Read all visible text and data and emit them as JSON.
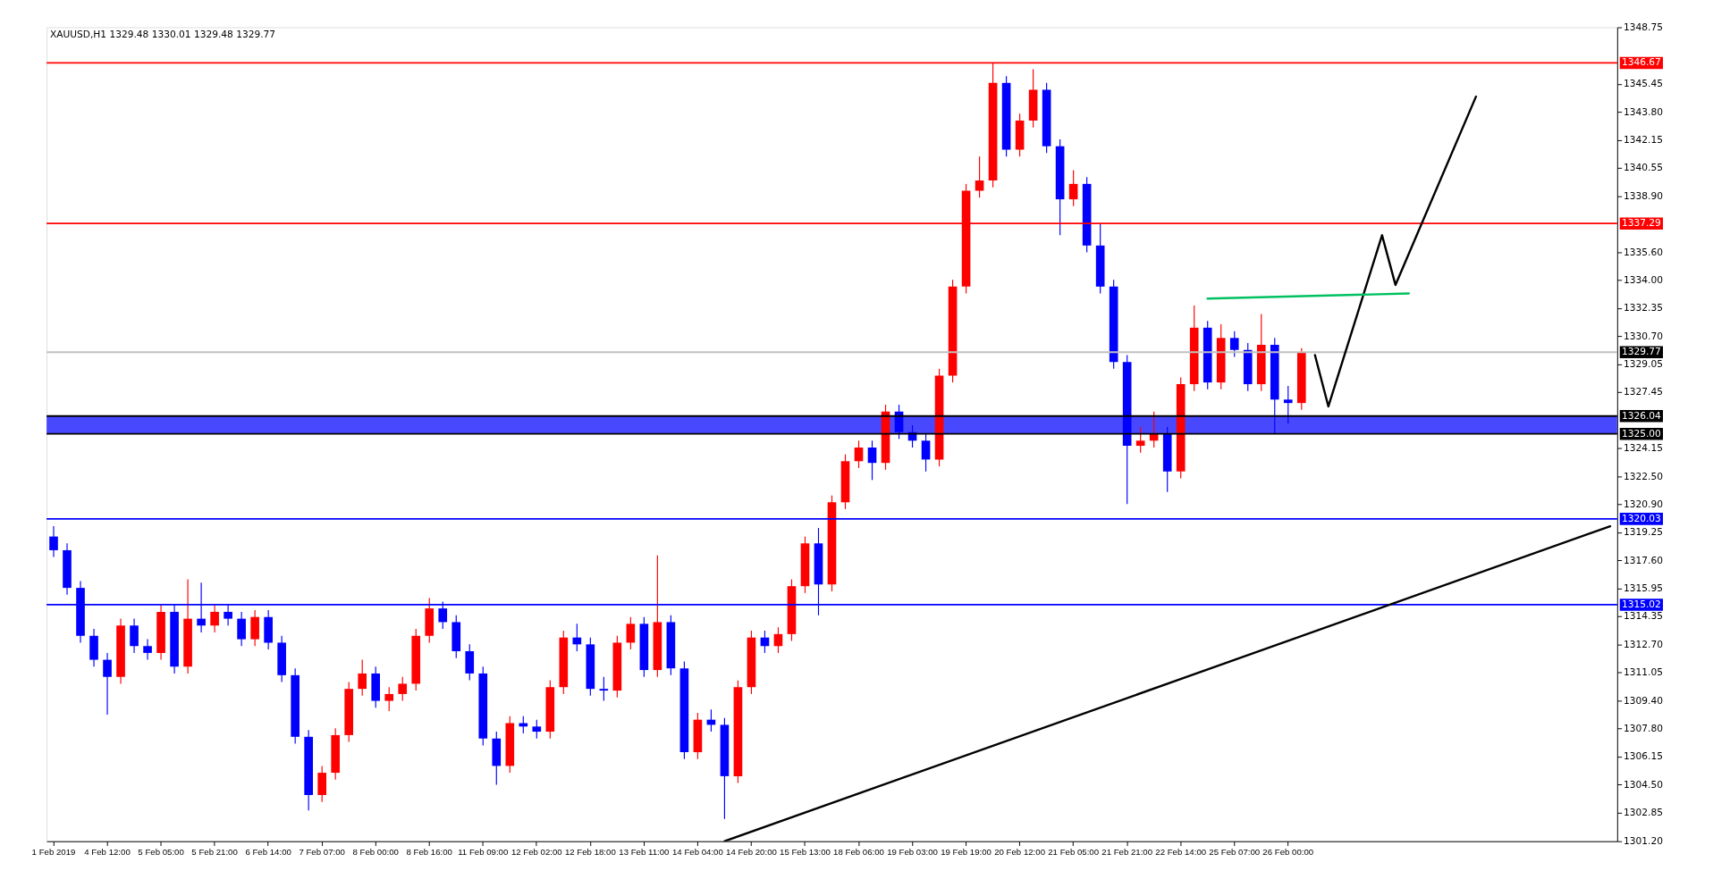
{
  "chart_data": {
    "type": "candlestick",
    "title": "XAUUSD,H1  1329.48 1330.01 1329.48 1329.77",
    "categories": [
      "1 Feb 2019",
      null,
      null,
      null,
      "4 Feb 12:00",
      null,
      null,
      null,
      "5 Feb 05:00",
      null,
      null,
      null,
      "5 Feb 21:00",
      null,
      null,
      null,
      "6 Feb 14:00",
      null,
      null,
      null,
      "7 Feb 07:00",
      null,
      null,
      null,
      "8 Feb 00:00",
      null,
      null,
      null,
      "8 Feb 16:00",
      null,
      null,
      null,
      "11 Feb 09:00",
      null,
      null,
      null,
      "12 Feb 02:00",
      null,
      null,
      null,
      "12 Feb 18:00",
      null,
      null,
      null,
      "13 Feb 11:00",
      null,
      null,
      null,
      "14 Feb 04:00",
      null,
      null,
      null,
      "14 Feb 20:00",
      null,
      null,
      null,
      "15 Feb 13:00",
      null,
      null,
      null,
      "18 Feb 06:00",
      null,
      null,
      null,
      "19 Feb 03:00",
      null,
      null,
      null,
      "19 Feb 19:00",
      null,
      null,
      null,
      "20 Feb 12:00",
      null,
      null,
      null,
      "21 Feb 05:00",
      null,
      null,
      null,
      "21 Feb 21:00",
      null,
      null,
      null,
      "22 Feb 14:00",
      null,
      null,
      null,
      "25 Feb 07:00",
      null,
      null,
      null,
      "26 Feb 00:00",
      null,
      null,
      null,
      null,
      null,
      null,
      null,
      null,
      null,
      null,
      null,
      null,
      null,
      null,
      null,
      null,
      null,
      null,
      null,
      null,
      null,
      null,
      null,
      null
    ],
    "ohlc": [
      [
        1319.0,
        1319.6,
        1317.8,
        1318.2
      ],
      [
        1318.2,
        1318.6,
        1315.6,
        1316.0
      ],
      [
        1316.0,
        1316.4,
        1312.8,
        1313.2
      ],
      [
        1313.2,
        1313.6,
        1311.4,
        1311.8
      ],
      [
        1311.8,
        1312.2,
        1308.6,
        1310.8
      ],
      [
        1310.8,
        1314.2,
        1310.4,
        1313.8
      ],
      [
        1313.8,
        1314.2,
        1312.2,
        1312.6
      ],
      [
        1312.6,
        1313.0,
        1311.8,
        1312.2
      ],
      [
        1312.2,
        1315.0,
        1311.8,
        1314.6
      ],
      [
        1314.6,
        1315.0,
        1311.0,
        1311.4
      ],
      [
        1311.4,
        1316.5,
        1311.0,
        1314.2
      ],
      [
        1314.2,
        1316.3,
        1313.4,
        1313.8
      ],
      [
        1313.8,
        1315.0,
        1313.4,
        1314.6
      ],
      [
        1314.6,
        1315.0,
        1313.8,
        1314.2
      ],
      [
        1314.2,
        1314.6,
        1312.6,
        1313.0
      ],
      [
        1313.0,
        1314.7,
        1312.6,
        1314.3
      ],
      [
        1314.3,
        1314.7,
        1312.4,
        1312.8
      ],
      [
        1312.8,
        1313.2,
        1310.5,
        1310.9
      ],
      [
        1310.9,
        1311.3,
        1306.9,
        1307.3
      ],
      [
        1307.3,
        1307.7,
        1303.0,
        1303.9
      ],
      [
        1303.9,
        1305.6,
        1303.5,
        1305.2
      ],
      [
        1305.2,
        1307.8,
        1304.8,
        1307.4
      ],
      [
        1307.4,
        1310.5,
        1307.0,
        1310.1
      ],
      [
        1310.1,
        1311.8,
        1309.7,
        1311.0
      ],
      [
        1311.0,
        1311.4,
        1309.0,
        1309.4
      ],
      [
        1309.4,
        1310.2,
        1308.8,
        1309.8
      ],
      [
        1309.8,
        1310.8,
        1309.4,
        1310.4
      ],
      [
        1310.4,
        1313.6,
        1310.0,
        1313.2
      ],
      [
        1313.2,
        1315.4,
        1312.8,
        1314.8
      ],
      [
        1314.8,
        1315.2,
        1313.6,
        1314.0
      ],
      [
        1314.0,
        1314.4,
        1311.9,
        1312.3
      ],
      [
        1312.3,
        1312.7,
        1310.6,
        1311.0
      ],
      [
        1311.0,
        1311.4,
        1306.8,
        1307.2
      ],
      [
        1307.2,
        1307.6,
        1304.5,
        1305.6
      ],
      [
        1305.6,
        1308.5,
        1305.2,
        1308.1
      ],
      [
        1308.1,
        1308.5,
        1307.5,
        1307.9
      ],
      [
        1307.9,
        1308.3,
        1307.2,
        1307.6
      ],
      [
        1307.6,
        1310.6,
        1307.2,
        1310.2
      ],
      [
        1310.2,
        1313.5,
        1309.8,
        1313.1
      ],
      [
        1313.1,
        1313.9,
        1312.3,
        1312.7
      ],
      [
        1312.7,
        1313.1,
        1309.7,
        1310.1
      ],
      [
        1310.1,
        1310.8,
        1309.4,
        1310.0
      ],
      [
        1310.0,
        1313.2,
        1309.6,
        1312.8
      ],
      [
        1312.8,
        1314.3,
        1312.4,
        1313.9
      ],
      [
        1313.9,
        1314.3,
        1310.8,
        1311.2
      ],
      [
        1311.2,
        1317.9,
        1310.8,
        1314.0
      ],
      [
        1314.0,
        1314.4,
        1310.9,
        1311.3
      ],
      [
        1311.3,
        1311.7,
        1306.0,
        1306.4
      ],
      [
        1306.4,
        1308.7,
        1306.0,
        1308.3
      ],
      [
        1308.3,
        1308.9,
        1307.6,
        1308.0
      ],
      [
        1308.0,
        1308.4,
        1302.5,
        1305.0
      ],
      [
        1305.0,
        1310.6,
        1304.6,
        1310.2
      ],
      [
        1310.2,
        1313.5,
        1309.8,
        1313.1
      ],
      [
        1313.1,
        1313.5,
        1312.2,
        1312.6
      ],
      [
        1312.6,
        1313.7,
        1312.2,
        1313.3
      ],
      [
        1313.3,
        1316.5,
        1312.9,
        1316.1
      ],
      [
        1316.1,
        1319.0,
        1315.7,
        1318.6
      ],
      [
        1318.6,
        1319.5,
        1314.4,
        1316.2
      ],
      [
        1316.2,
        1321.4,
        1315.8,
        1321.0
      ],
      [
        1321.0,
        1323.8,
        1320.6,
        1323.4
      ],
      [
        1323.4,
        1324.6,
        1323.0,
        1324.2
      ],
      [
        1324.2,
        1324.6,
        1322.3,
        1323.3
      ],
      [
        1323.3,
        1326.7,
        1322.9,
        1326.3
      ],
      [
        1326.3,
        1326.7,
        1324.7,
        1325.1
      ],
      [
        1325.1,
        1325.5,
        1324.2,
        1324.6
      ],
      [
        1324.6,
        1325.0,
        1322.8,
        1323.5
      ],
      [
        1323.5,
        1328.8,
        1323.1,
        1328.4
      ],
      [
        1328.4,
        1334.0,
        1328.0,
        1333.6
      ],
      [
        1333.6,
        1339.6,
        1333.2,
        1339.2
      ],
      [
        1339.2,
        1341.2,
        1338.8,
        1339.8
      ],
      [
        1339.8,
        1346.67,
        1339.4,
        1345.5
      ],
      [
        1345.5,
        1345.9,
        1341.2,
        1341.6
      ],
      [
        1341.6,
        1343.7,
        1341.2,
        1343.3
      ],
      [
        1343.3,
        1346.3,
        1342.9,
        1345.1
      ],
      [
        1345.1,
        1345.5,
        1341.4,
        1341.8
      ],
      [
        1341.8,
        1342.2,
        1336.6,
        1338.7
      ],
      [
        1338.7,
        1340.4,
        1338.3,
        1339.6
      ],
      [
        1339.6,
        1340.0,
        1335.6,
        1336.0
      ],
      [
        1336.0,
        1337.3,
        1333.2,
        1333.6
      ],
      [
        1333.6,
        1334.0,
        1328.8,
        1329.2
      ],
      [
        1329.2,
        1329.6,
        1320.9,
        1324.3
      ],
      [
        1324.3,
        1325.4,
        1323.9,
        1324.6
      ],
      [
        1324.6,
        1326.3,
        1324.2,
        1325.0
      ],
      [
        1325.0,
        1325.4,
        1321.6,
        1322.8
      ],
      [
        1322.8,
        1328.3,
        1322.4,
        1327.9
      ],
      [
        1327.9,
        1332.5,
        1327.5,
        1331.2
      ],
      [
        1331.2,
        1331.6,
        1327.6,
        1328.0
      ],
      [
        1328.0,
        1331.4,
        1327.6,
        1330.6
      ],
      [
        1330.6,
        1331.0,
        1329.5,
        1329.9
      ],
      [
        1329.9,
        1330.3,
        1327.5,
        1327.9
      ],
      [
        1327.9,
        1332.0,
        1327.5,
        1330.2
      ],
      [
        1330.2,
        1330.6,
        1325.0,
        1327.0
      ],
      [
        1327.0,
        1327.8,
        1325.6,
        1326.8
      ],
      [
        1326.8,
        1330.01,
        1326.4,
        1329.77
      ],
      null,
      null,
      null,
      null,
      null,
      null,
      null,
      null,
      null,
      null,
      null,
      null,
      null,
      null,
      null,
      null,
      null,
      null,
      null,
      null,
      null,
      null,
      null
    ],
    "colors": [
      "#0000ff",
      "#0000ff",
      "#0000ff",
      "#0000ff",
      "#0000ff",
      "#ff0000",
      "#0000ff",
      "#0000ff",
      "#ff0000",
      "#0000ff",
      "#ff0000",
      "#0000ff",
      "#ff0000",
      "#0000ff",
      "#0000ff",
      "#ff0000",
      "#0000ff",
      "#0000ff",
      "#0000ff",
      "#0000ff",
      "#ff0000",
      "#ff0000",
      "#ff0000",
      "#ff0000",
      "#0000ff",
      "#ff0000",
      "#ff0000",
      "#ff0000",
      "#ff0000",
      "#0000ff",
      "#0000ff",
      "#0000ff",
      "#0000ff",
      "#0000ff",
      "#ff0000",
      "#0000ff",
      "#0000ff",
      "#ff0000",
      "#ff0000",
      "#0000ff",
      "#0000ff",
      "#0000ff",
      "#ff0000",
      "#ff0000",
      "#0000ff",
      "#ff0000",
      "#0000ff",
      "#0000ff",
      "#ff0000",
      "#0000ff",
      "#0000ff",
      "#ff0000",
      "#ff0000",
      "#0000ff",
      "#ff0000",
      "#ff0000",
      "#ff0000",
      "#0000ff",
      "#ff0000",
      "#ff0000",
      "#ff0000",
      "#0000ff",
      "#ff0000",
      "#0000ff",
      "#0000ff",
      "#0000ff",
      "#ff0000",
      "#ff0000",
      "#ff0000",
      "#ff0000",
      "#ff0000",
      "#0000ff",
      "#ff0000",
      "#ff0000",
      "#0000ff",
      "#0000ff",
      "#ff0000",
      "#0000ff",
      "#0000ff",
      "#0000ff",
      "#0000ff",
      "#ff0000",
      "#ff0000",
      "#0000ff",
      "#ff0000",
      "#ff0000",
      "#0000ff",
      "#ff0000",
      "#0000ff",
      "#0000ff",
      "#ff0000",
      "#0000ff",
      "#0000ff",
      "#ff0000",
      null,
      null,
      null,
      null,
      null,
      null,
      null,
      null,
      null,
      null,
      null,
      null,
      null,
      null,
      null,
      null,
      null,
      null,
      null,
      null,
      null,
      null,
      null
    ],
    "series": [
      {
        "type": "line",
        "color": "#000000",
        "values": [
          null,
          null,
          null,
          null,
          null,
          null,
          null,
          null,
          null,
          null,
          null,
          null,
          null,
          null,
          null,
          null,
          null,
          null,
          null,
          null,
          null,
          null,
          null,
          null,
          null,
          null,
          null,
          null,
          null,
          null,
          null,
          null,
          null,
          null,
          null,
          null,
          null,
          null,
          null,
          null,
          null,
          null,
          null,
          null,
          null,
          null,
          null,
          null,
          null,
          null,
          1301.2,
          null,
          null,
          null,
          null,
          null,
          null,
          null,
          null,
          null,
          null,
          null,
          null,
          null,
          null,
          null,
          null,
          null,
          null,
          null,
          null,
          null,
          null,
          null,
          null,
          null,
          null,
          null,
          null,
          null,
          null,
          null,
          null,
          null,
          null,
          null,
          null,
          null,
          null,
          null,
          null,
          null,
          null,
          null,
          null,
          null,
          null,
          null,
          null,
          null,
          null,
          null,
          null,
          null,
          null,
          null,
          null,
          null,
          null,
          null,
          null,
          null,
          null,
          null,
          null,
          null,
          1319.6
        ]
      },
      {
        "type": "line",
        "color": "#000000",
        "values": [
          null,
          null,
          null,
          null,
          null,
          null,
          null,
          null,
          null,
          null,
          null,
          null,
          null,
          null,
          null,
          null,
          null,
          null,
          null,
          null,
          null,
          null,
          null,
          null,
          null,
          null,
          null,
          null,
          null,
          null,
          null,
          null,
          null,
          null,
          null,
          null,
          null,
          null,
          null,
          null,
          null,
          null,
          null,
          null,
          null,
          null,
          null,
          null,
          null,
          null,
          null,
          null,
          null,
          null,
          null,
          null,
          null,
          null,
          null,
          null,
          null,
          null,
          null,
          null,
          null,
          null,
          null,
          null,
          null,
          null,
          null,
          null,
          null,
          null,
          null,
          null,
          null,
          null,
          null,
          null,
          null,
          null,
          null,
          null,
          null,
          null,
          null,
          null,
          null,
          null,
          null,
          null,
          null,
          null,
          1329.6,
          1326.6,
          null,
          null,
          null,
          1336.6,
          1333.7,
          null,
          null,
          null,
          null,
          null,
          1344.7,
          null,
          null,
          null,
          null,
          null,
          null,
          null,
          null,
          null,
          null
        ]
      },
      {
        "type": "line",
        "color": "#00c060",
        "values": [
          null,
          null,
          null,
          null,
          null,
          null,
          null,
          null,
          null,
          null,
          null,
          null,
          null,
          null,
          null,
          null,
          null,
          null,
          null,
          null,
          null,
          null,
          null,
          null,
          null,
          null,
          null,
          null,
          null,
          null,
          null,
          null,
          null,
          null,
          null,
          null,
          null,
          null,
          null,
          null,
          null,
          null,
          null,
          null,
          null,
          null,
          null,
          null,
          null,
          null,
          null,
          null,
          null,
          null,
          null,
          null,
          null,
          null,
          null,
          null,
          null,
          null,
          null,
          null,
          null,
          null,
          null,
          null,
          null,
          null,
          null,
          null,
          null,
          null,
          null,
          null,
          null,
          null,
          null,
          null,
          null,
          null,
          null,
          null,
          null,
          null,
          1332.9,
          null,
          null,
          null,
          null,
          null,
          null,
          null,
          null,
          null,
          null,
          null,
          null,
          null,
          null,
          1333.2,
          null,
          null,
          null,
          null,
          null,
          null,
          null,
          null,
          null,
          null,
          null,
          null,
          null,
          null,
          null
        ]
      }
    ],
    "ylim": [
      1301.2,
      1348.75
    ],
    "yticks": [
      {
        "value": 1301.2,
        "label": "1301.20"
      },
      {
        "value": 1302.85,
        "label": "1302.85"
      },
      {
        "value": 1304.5,
        "label": "1304.50"
      },
      {
        "value": 1306.15,
        "label": "1306.15"
      },
      {
        "value": 1307.8,
        "label": "1307.80"
      },
      {
        "value": 1309.4,
        "label": "1309.40"
      },
      {
        "value": 1311.05,
        "label": "1311.05"
      },
      {
        "value": 1312.7,
        "label": "1312.70"
      },
      {
        "value": 1314.35,
        "label": "1314.35"
      },
      {
        "value": 1315.95,
        "label": "1315.95"
      },
      {
        "value": 1317.6,
        "label": "1317.60"
      },
      {
        "value": 1319.25,
        "label": "1319.25"
      },
      {
        "value": 1320.9,
        "label": "1320.90"
      },
      {
        "value": 1322.5,
        "label": "1322.50"
      },
      {
        "value": 1324.15,
        "label": "1324.15"
      },
      {
        "value": 1327.45,
        "label": "1327.45"
      },
      {
        "value": 1329.05,
        "label": "1329.05"
      },
      {
        "value": 1330.7,
        "label": "1330.70"
      },
      {
        "value": 1332.35,
        "label": "1332.35"
      },
      {
        "value": 1334.0,
        "label": "1334.00"
      },
      {
        "value": 1335.6,
        "label": "1335.60"
      },
      {
        "value": 1338.9,
        "label": "1338.90"
      },
      {
        "value": 1340.55,
        "label": "1340.55"
      },
      {
        "value": 1342.15,
        "label": "1342.15"
      },
      {
        "value": 1343.8,
        "label": "1343.80"
      },
      {
        "value": 1345.45,
        "label": "1345.45"
      },
      {
        "value": 1348.75,
        "label": "1348.75"
      }
    ],
    "ref_lines": [
      {
        "axis": "y",
        "value": 1346.67,
        "label": "1346.67",
        "color": "#ff0000"
      },
      {
        "axis": "y",
        "value": 1337.29,
        "label": "1337.29",
        "color": "#ff0000"
      },
      {
        "axis": "y",
        "value": 1329.77,
        "label": "1329.77",
        "color": "#c0c0c0"
      },
      {
        "axis": "y",
        "value": 1326.04,
        "label": "1326.04",
        "color": "#000000"
      },
      {
        "axis": "y",
        "value": 1325.0,
        "label": "1325.00",
        "color": "#000000"
      },
      {
        "axis": "y",
        "value": 1320.03,
        "label": "1320.03",
        "color": "#0000ff"
      },
      {
        "axis": "y",
        "value": 1315.02,
        "label": "1315.02",
        "color": "#0000ff"
      }
    ],
    "bands": [
      {
        "axis": "y",
        "from": 1325.0,
        "to": 1326.04,
        "color": "#4848ff"
      }
    ]
  }
}
